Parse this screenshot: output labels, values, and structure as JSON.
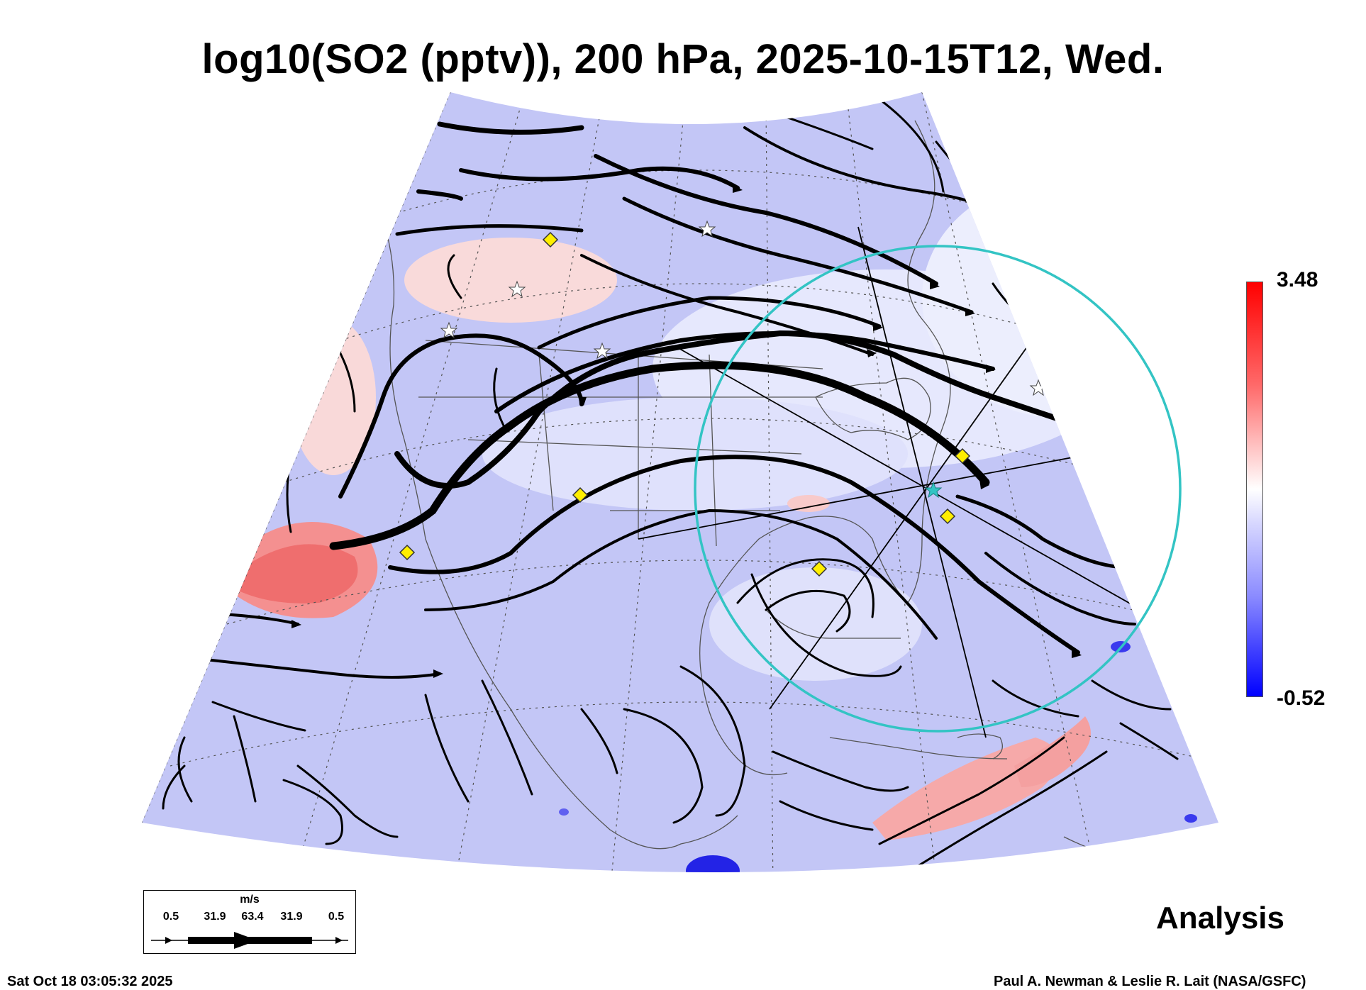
{
  "title": "log10(SO2 (pptv)), 200 hPa, 2025-10-15T12, Wed.",
  "colorbar": {
    "max_label": "3.48",
    "min_label": "-0.52",
    "high_color": "#ff0000",
    "mid_color": "#ffffff",
    "low_color": "#0000ff"
  },
  "legend": {
    "unit": "m/s",
    "ticks": [
      "0.5",
      "31.9",
      "63.4",
      "31.9",
      "0.5"
    ]
  },
  "analysis_label": "Analysis",
  "footer": {
    "timestamp": "Sat Oct 18 03:05:32 2025",
    "credit": "Paul A. Newman & Leslie R. Lait (NASA/GSFC)"
  },
  "map": {
    "field": "SO2 log10 pptv",
    "level": "200 hPa",
    "markers": "yellow-diamond",
    "circle_color": "#33c4c4"
  }
}
